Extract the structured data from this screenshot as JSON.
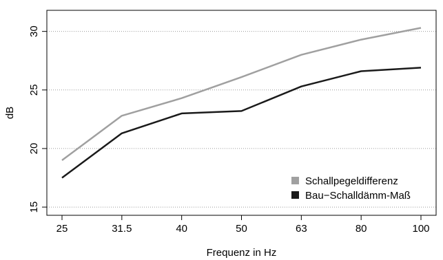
{
  "chart_data": {
    "type": "line",
    "title": "",
    "xlabel": "Frequenz in Hz",
    "ylabel": "dB",
    "categories": [
      "25",
      "31.5",
      "40",
      "50",
      "63",
      "80",
      "100"
    ],
    "ylim": [
      14.3,
      31.8
    ],
    "yticks": [
      15,
      20,
      25,
      30
    ],
    "grid": "horizontal-dotted",
    "legend_position": "bottom-right",
    "series": [
      {
        "name": "Schallpegeldifferenz",
        "color": "#a0a0a0",
        "values": [
          19.0,
          22.8,
          24.3,
          26.1,
          28.0,
          29.3,
          30.3
        ]
      },
      {
        "name": "Bau−Schalldämm-Maß",
        "color": "#1a1a1a",
        "values": [
          17.5,
          21.3,
          23.0,
          23.2,
          25.3,
          26.6,
          26.9
        ]
      }
    ]
  }
}
